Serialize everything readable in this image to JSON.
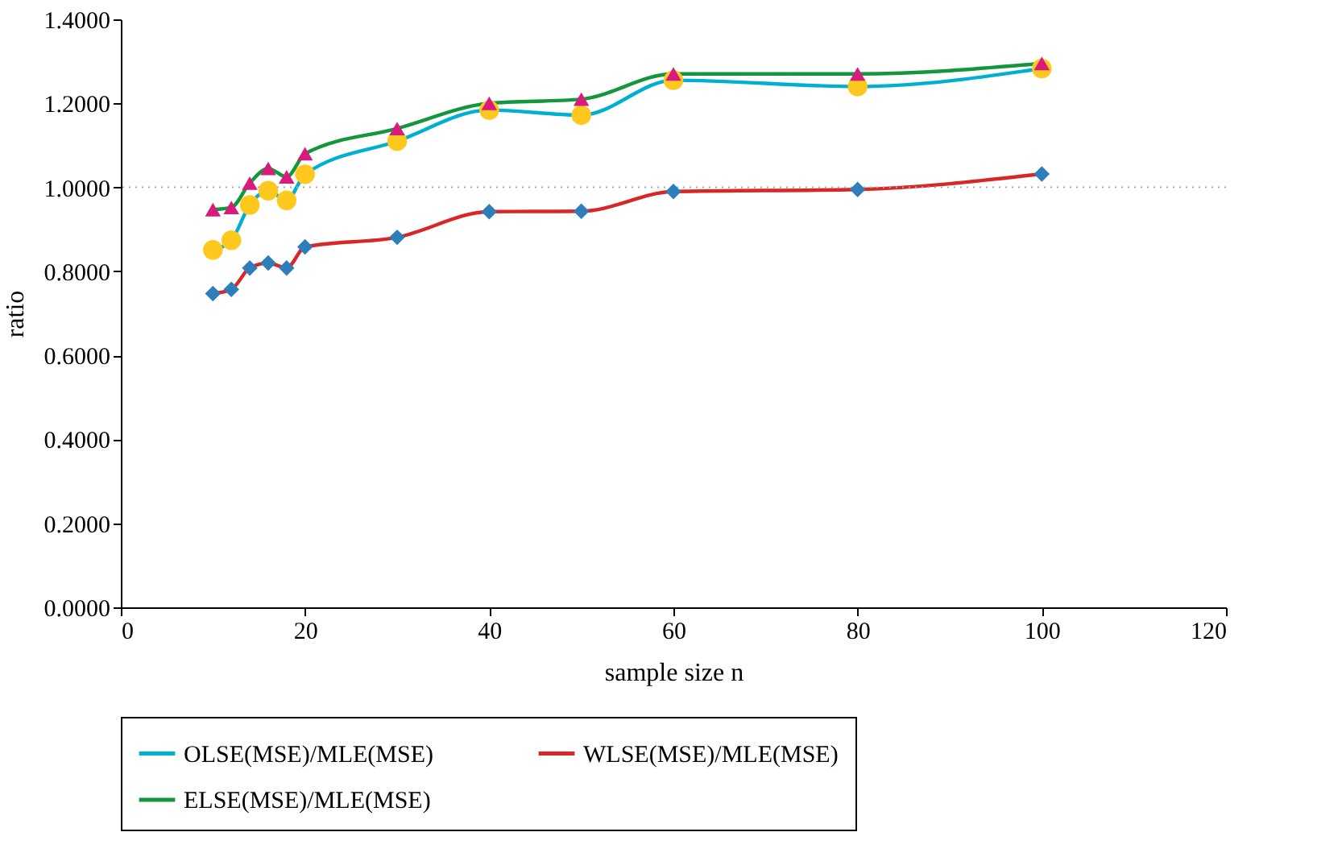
{
  "chart_data": {
    "type": "line",
    "xlabel": "sample size n",
    "ylabel": "ratio",
    "xlim": [
      0,
      120
    ],
    "xticks": [
      0,
      20,
      40,
      60,
      80,
      100,
      120
    ],
    "ylim": [
      0,
      1.4
    ],
    "yticks": [
      {
        "value": 0,
        "label": "0.0000"
      },
      {
        "value": 0.2,
        "label": "0.2000"
      },
      {
        "value": 0.4,
        "label": "0.4000"
      },
      {
        "value": 0.6,
        "label": "0.6000"
      },
      {
        "value": 0.8,
        "label": "0.8000"
      },
      {
        "value": 1,
        "label": "1.0000"
      },
      {
        "value": 1.2,
        "label": "1.2000"
      },
      {
        "value": 1.4,
        "label": "1.4000"
      }
    ],
    "x": [
      10,
      12,
      14,
      16,
      18,
      20,
      30,
      40,
      50,
      60,
      80,
      100
    ],
    "series": [
      {
        "name": "OLSE(MSE)/MLE(MSE)",
        "color": "#00b0d0",
        "marker": "circle",
        "colors": [
          "#ffc81e",
          "#ffc81e",
          "#ffc81e",
          "#ffc81e",
          "#ffc81e",
          "#ffc81e",
          "#ffc81e",
          "#ffc81e",
          "#ffc81e",
          "#ffc81e",
          "#ffc81e",
          "#ffc81e"
        ],
        "values": [
          0.851,
          0.874,
          0.958,
          0.992,
          0.969,
          1.031,
          1.11,
          1.184,
          1.172,
          1.255,
          1.24,
          1.283
        ]
      },
      {
        "name": "WLSE(MSE)/MLE(MSE)",
        "color": "#d92626",
        "marker": "diamond",
        "colors": [
          "#2e7ebc",
          "#2e7ebc",
          "#2e7ebc",
          "#2e7ebc",
          "#2e7ebc",
          "#2e7ebc",
          "#2e7ebc",
          "#2e7ebc",
          "#2e7ebc",
          "#2e7ebc",
          "#2e7ebc",
          "#2e7ebc"
        ],
        "values": [
          0.747,
          0.757,
          0.808,
          0.82,
          0.808,
          0.858,
          0.881,
          0.942,
          0.943,
          0.99,
          0.995,
          1.032
        ]
      },
      {
        "name": "ELSE(MSE)/MLE(MSE)",
        "color": "#14963c",
        "marker": "triangle",
        "colors": [
          "#d81b7d",
          "#d81b7d",
          "#d81b7d",
          "#d81b7d",
          "#d81b7d",
          "#d81b7d",
          "#d81b7d",
          "#d81b7d",
          "#d81b7d",
          "#d81b7d",
          "#d81b7d",
          "#d81b7d"
        ],
        "values": [
          0.947,
          0.952,
          1.01,
          1.045,
          1.025,
          1.08,
          1.14,
          1.2,
          1.21,
          1.27,
          1.27,
          1.295
        ]
      }
    ],
    "ref_lines": [
      {
        "axis": "y",
        "value": 1,
        "color": "#aaaaaa",
        "line_style": "dotted"
      }
    ],
    "line_style": "solid",
    "legend": "bottom"
  }
}
